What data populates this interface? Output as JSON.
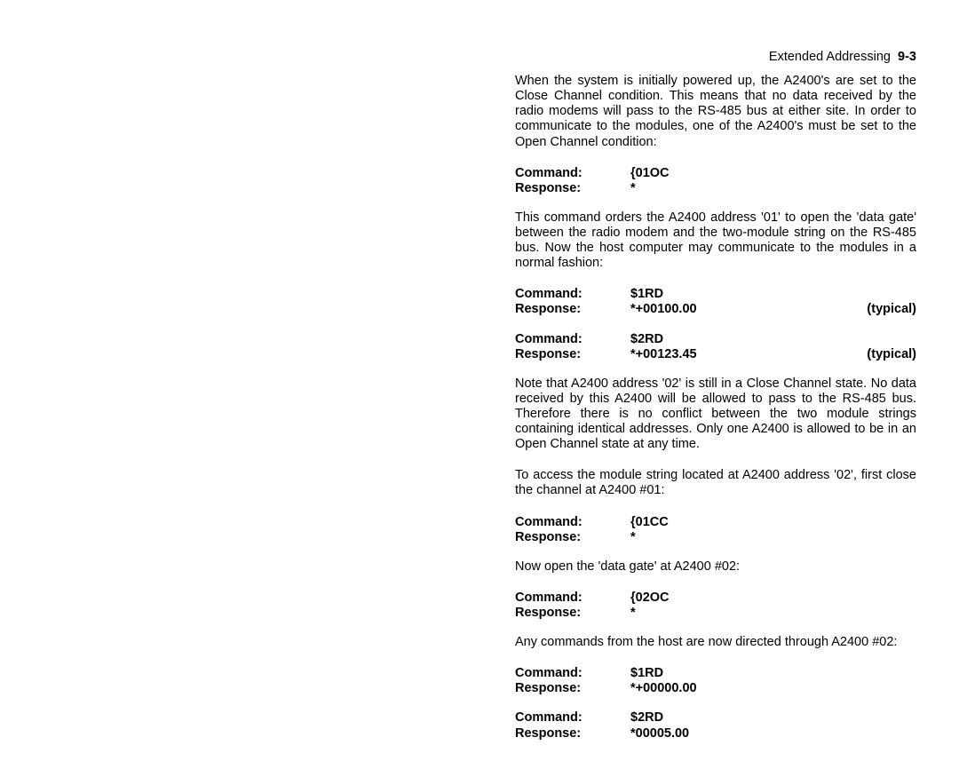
{
  "header": {
    "title": "Extended Addressing",
    "page_num": "9-3"
  },
  "para1": "When the system is initially powered up, the A2400's are set to the Close Channel condition. This means that no data received by the radio modems will pass to the RS-485 bus at either site. In order to communicate to the modules, one of the A2400's must be set to the Open Channel condition:",
  "block1": {
    "cmd_label": "Command:",
    "cmd_val": "{01OC",
    "resp_label": "Response:",
    "resp_val": "*"
  },
  "para2": "This command orders the A2400 address '01' to open the 'data gate' between the radio modem and the two-module string on the RS-485 bus. Now the host computer may communicate to the modules in a normal fashion:",
  "block2a": {
    "cmd_label": "Command:",
    "cmd_val": "$1RD",
    "resp_label": "Response:",
    "resp_val": "*+00100.00",
    "note": "(typical)"
  },
  "block2b": {
    "cmd_label": "Command:",
    "cmd_val": "$2RD",
    "resp_label": "Response:",
    "resp_val": "*+00123.45",
    "note": "(typical)"
  },
  "para3": "Note that A2400 address '02' is still in a Close Channel state. No data received by this A2400 will be allowed to pass to the RS-485 bus. Therefore there is no conflict between the two module strings containing identical addresses. Only one A2400 is allowed to be in an Open Channel state at any time.",
  "para4": "To access the module string located at A2400 address '02', first close the channel at A2400 #01:",
  "block3": {
    "cmd_label": "Command:",
    "cmd_val": "{01CC",
    "resp_label": "Response:",
    "resp_val": "*"
  },
  "para5": "Now open the 'data gate' at A2400 #02:",
  "block4": {
    "cmd_label": "Command:",
    "cmd_val": "{02OC",
    "resp_label": "Response:",
    "resp_val": "*"
  },
  "para6": "Any commands from the host are now directed through A2400 #02:",
  "block5a": {
    "cmd_label": "Command:",
    "cmd_val": "$1RD",
    "resp_label": "Response:",
    "resp_val": "*+00000.00"
  },
  "block5b": {
    "cmd_label": "Command:",
    "cmd_val": "$2RD",
    "resp_label": "Response:",
    "resp_val": "*00005.00"
  }
}
